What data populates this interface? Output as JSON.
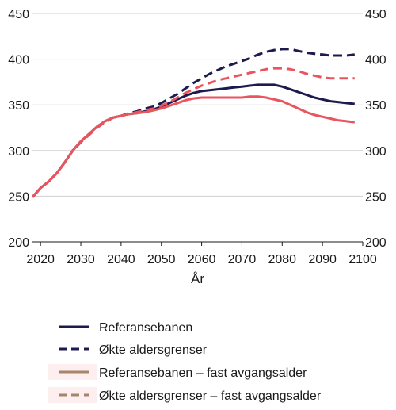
{
  "chart_data": {
    "type": "line",
    "xlabel": "År",
    "ylabel": "",
    "xlim": [
      2018,
      2100
    ],
    "ylim": [
      200,
      450
    ],
    "x_ticks": [
      2020,
      2030,
      2040,
      2050,
      2060,
      2070,
      2080,
      2090,
      2100
    ],
    "y_ticks": [
      200,
      250,
      300,
      350,
      400,
      450
    ],
    "grid": "horizontal",
    "legend_position": "bottom",
    "colors": {
      "navy": "#1d1a4e",
      "red": "#e9555e",
      "brown": "#a5866a",
      "grid": "#cfcfcf"
    },
    "series": [
      {
        "name": "Referansebanen",
        "color": "#1d1a4e",
        "dash": "solid",
        "points": [
          [
            2018,
            249
          ],
          [
            2020,
            259
          ],
          [
            2022,
            266
          ],
          [
            2024,
            275
          ],
          [
            2026,
            287
          ],
          [
            2028,
            300
          ],
          [
            2030,
            310
          ],
          [
            2032,
            318
          ],
          [
            2034,
            326
          ],
          [
            2036,
            332
          ],
          [
            2038,
            336
          ],
          [
            2040,
            338
          ],
          [
            2042,
            340
          ],
          [
            2044,
            341
          ],
          [
            2046,
            343
          ],
          [
            2048,
            345
          ],
          [
            2050,
            348
          ],
          [
            2052,
            352
          ],
          [
            2054,
            356
          ],
          [
            2056,
            360
          ],
          [
            2058,
            363
          ],
          [
            2060,
            365
          ],
          [
            2062,
            366
          ],
          [
            2064,
            367
          ],
          [
            2066,
            368
          ],
          [
            2068,
            369
          ],
          [
            2070,
            370
          ],
          [
            2072,
            371
          ],
          [
            2074,
            372
          ],
          [
            2076,
            372
          ],
          [
            2078,
            372
          ],
          [
            2080,
            370
          ],
          [
            2082,
            367
          ],
          [
            2084,
            364
          ],
          [
            2086,
            361
          ],
          [
            2088,
            358
          ],
          [
            2090,
            356
          ],
          [
            2092,
            354
          ],
          [
            2094,
            353
          ],
          [
            2096,
            352
          ],
          [
            2098,
            351
          ]
        ]
      },
      {
        "name": "Økte aldersgrenser",
        "color": "#1d1a4e",
        "dash": "dashed",
        "points": [
          [
            2018,
            249
          ],
          [
            2020,
            259
          ],
          [
            2022,
            266
          ],
          [
            2024,
            275
          ],
          [
            2026,
            287
          ],
          [
            2028,
            300
          ],
          [
            2030,
            309
          ],
          [
            2032,
            317
          ],
          [
            2034,
            325
          ],
          [
            2036,
            331
          ],
          [
            2038,
            336
          ],
          [
            2040,
            338
          ],
          [
            2042,
            341
          ],
          [
            2044,
            343
          ],
          [
            2046,
            346
          ],
          [
            2048,
            348
          ],
          [
            2050,
            352
          ],
          [
            2052,
            357
          ],
          [
            2054,
            362
          ],
          [
            2056,
            368
          ],
          [
            2058,
            374
          ],
          [
            2060,
            379
          ],
          [
            2062,
            384
          ],
          [
            2064,
            388
          ],
          [
            2066,
            392
          ],
          [
            2068,
            395
          ],
          [
            2070,
            398
          ],
          [
            2072,
            401
          ],
          [
            2074,
            405
          ],
          [
            2076,
            408
          ],
          [
            2078,
            410
          ],
          [
            2080,
            411
          ],
          [
            2082,
            411
          ],
          [
            2084,
            409
          ],
          [
            2086,
            407
          ],
          [
            2088,
            406
          ],
          [
            2090,
            405
          ],
          [
            2092,
            404
          ],
          [
            2094,
            404
          ],
          [
            2096,
            404
          ],
          [
            2098,
            405
          ]
        ]
      },
      {
        "name": "Referansebanen – fast avgangsalder",
        "color": "#e9555e",
        "dash": "solid",
        "points": [
          [
            2018,
            249
          ],
          [
            2020,
            259
          ],
          [
            2022,
            266
          ],
          [
            2024,
            275
          ],
          [
            2026,
            287
          ],
          [
            2028,
            300
          ],
          [
            2030,
            310
          ],
          [
            2032,
            318
          ],
          [
            2034,
            326
          ],
          [
            2036,
            332
          ],
          [
            2038,
            336
          ],
          [
            2040,
            338
          ],
          [
            2042,
            340
          ],
          [
            2044,
            341
          ],
          [
            2046,
            342
          ],
          [
            2048,
            344
          ],
          [
            2050,
            346
          ],
          [
            2052,
            349
          ],
          [
            2054,
            352
          ],
          [
            2056,
            355
          ],
          [
            2058,
            357
          ],
          [
            2060,
            358
          ],
          [
            2062,
            358
          ],
          [
            2064,
            358
          ],
          [
            2066,
            358
          ],
          [
            2068,
            358
          ],
          [
            2070,
            358
          ],
          [
            2072,
            359
          ],
          [
            2074,
            359
          ],
          [
            2076,
            358
          ],
          [
            2078,
            356
          ],
          [
            2080,
            354
          ],
          [
            2082,
            350
          ],
          [
            2084,
            346
          ],
          [
            2086,
            342
          ],
          [
            2088,
            339
          ],
          [
            2090,
            337
          ],
          [
            2092,
            335
          ],
          [
            2094,
            333
          ],
          [
            2096,
            332
          ],
          [
            2098,
            331
          ]
        ]
      },
      {
        "name": "Økte aldersgrenser – fast avgangsalder",
        "color": "#e9555e",
        "dash": "dashed",
        "points": [
          [
            2018,
            249
          ],
          [
            2020,
            259
          ],
          [
            2022,
            266
          ],
          [
            2024,
            275
          ],
          [
            2026,
            287
          ],
          [
            2028,
            300
          ],
          [
            2030,
            309
          ],
          [
            2032,
            317
          ],
          [
            2034,
            325
          ],
          [
            2036,
            331
          ],
          [
            2038,
            336
          ],
          [
            2040,
            338
          ],
          [
            2042,
            340
          ],
          [
            2044,
            342
          ],
          [
            2046,
            344
          ],
          [
            2048,
            346
          ],
          [
            2050,
            349
          ],
          [
            2052,
            353
          ],
          [
            2054,
            358
          ],
          [
            2056,
            363
          ],
          [
            2058,
            367
          ],
          [
            2060,
            371
          ],
          [
            2062,
            374
          ],
          [
            2064,
            377
          ],
          [
            2066,
            379
          ],
          [
            2068,
            381
          ],
          [
            2070,
            383
          ],
          [
            2072,
            385
          ],
          [
            2074,
            387
          ],
          [
            2076,
            389
          ],
          [
            2078,
            390
          ],
          [
            2080,
            390
          ],
          [
            2082,
            389
          ],
          [
            2084,
            387
          ],
          [
            2086,
            384
          ],
          [
            2088,
            382
          ],
          [
            2090,
            380
          ],
          [
            2092,
            379
          ],
          [
            2094,
            379
          ],
          [
            2096,
            379
          ],
          [
            2098,
            379
          ]
        ]
      }
    ],
    "legend_swatch_colors": [
      "#1d1a4e",
      "#1d1a4e",
      "#a5866a",
      "#a5866a"
    ]
  }
}
